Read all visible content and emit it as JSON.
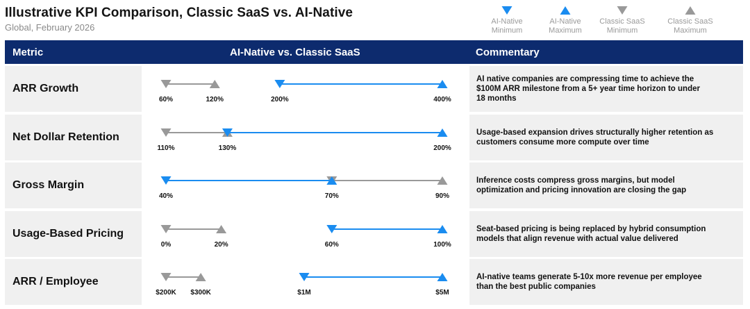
{
  "title": "Illustrative KPI Comparison, Classic SaaS vs. AI-Native",
  "subtitle": "Global, February 2026",
  "legend": [
    {
      "line1": "AI-Native",
      "line2": "Minimum",
      "color": "#1a8cf0",
      "marker": "down"
    },
    {
      "line1": "AI-Native",
      "line2": "Maximum",
      "color": "#1a8cf0",
      "marker": "up"
    },
    {
      "line1": "Classic SaaS",
      "line2": "Minimum",
      "color": "#999999",
      "marker": "down"
    },
    {
      "line1": "Classic SaaS",
      "line2": "Maximum",
      "color": "#999999",
      "marker": "up"
    }
  ],
  "header": {
    "metric": "Metric",
    "comparison": "AI-Native vs. Classic SaaS",
    "commentary": "Commentary"
  },
  "colors": {
    "ai_native": "#1a8cf0",
    "classic_saas": "#999999",
    "header_bg": "#0d2b6e",
    "row_bg": "#f0f0f0"
  },
  "chart_data": {
    "type": "dumbbell",
    "series": [
      {
        "name": "AI-Native",
        "markers": [
          "Minimum",
          "Maximum"
        ]
      },
      {
        "name": "Classic SaaS",
        "markers": [
          "Minimum",
          "Maximum"
        ]
      }
    ],
    "rows": [
      {
        "metric": "ARR Growth",
        "scale": [
          60,
          400
        ],
        "classic": {
          "min": 60,
          "max": 120,
          "min_label": "60%",
          "max_label": "120%"
        },
        "ai": {
          "min": 200,
          "max": 400,
          "min_label": "200%",
          "max_label": "400%"
        },
        "commentary": [
          "AI native companies are compressing time to achieve the",
          "$100M ARR milestone from a 5+ year time horizon to under",
          "18 months"
        ]
      },
      {
        "metric": "Net Dollar Retention",
        "scale": [
          110,
          200
        ],
        "classic": {
          "min": 110,
          "max": 130,
          "min_label": "110%",
          "max_label": ""
        },
        "ai": {
          "min": 130,
          "max": 200,
          "min_label": "130%",
          "max_label": "200%"
        },
        "commentary": [
          "Usage-based expansion drives structurally higher retention as",
          "customers consume more compute over time"
        ]
      },
      {
        "metric": "Gross Margin",
        "scale": [
          40,
          90
        ],
        "classic": {
          "min": 70,
          "max": 90,
          "min_label": "70%",
          "max_label": "90%"
        },
        "ai": {
          "min": 40,
          "max": 70,
          "min_label": "40%",
          "max_label": ""
        },
        "commentary": [
          "Inference costs compress gross margins, but model",
          "optimization and pricing innovation are closing the gap"
        ]
      },
      {
        "metric": "Usage-Based Pricing",
        "scale": [
          0,
          100
        ],
        "classic": {
          "min": 0,
          "max": 20,
          "min_label": "0%",
          "max_label": "20%"
        },
        "ai": {
          "min": 60,
          "max": 100,
          "min_label": "60%",
          "max_label": "100%"
        },
        "commentary": [
          "Seat-based pricing is being replaced by hybrid consumption",
          "models that align revenue with actual value delivered"
        ]
      },
      {
        "metric": "ARR / Employee",
        "scale": [
          0.2,
          5
        ],
        "classic": {
          "min": 0.2,
          "max": 0.3,
          "min_label": "$200K",
          "max_label": "$300K"
        },
        "ai": {
          "min": 1,
          "max": 5,
          "min_label": "$1M",
          "max_label": "$5M"
        },
        "commentary": [
          "AI-native teams generate 5-10x more revenue per employee",
          "than the best public companies"
        ]
      }
    ]
  }
}
